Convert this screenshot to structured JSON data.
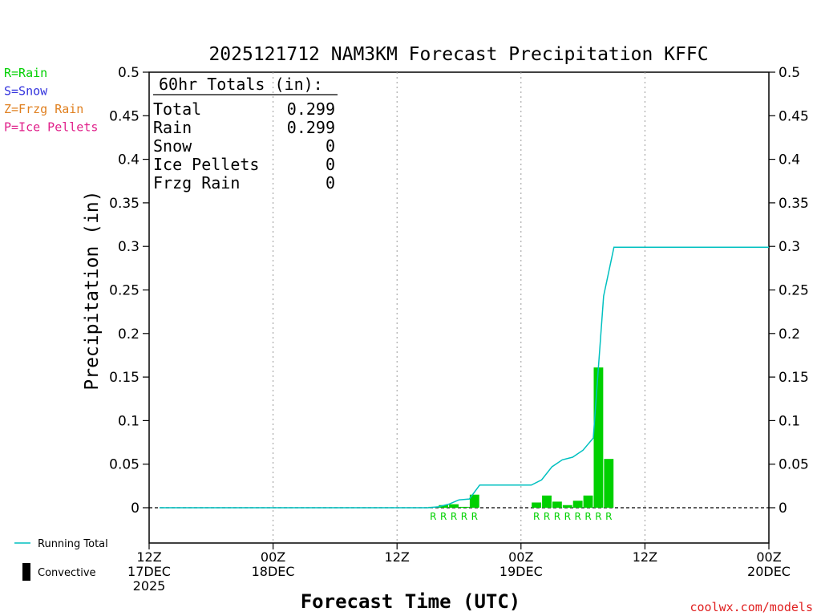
{
  "chart_data": {
    "type": "bar",
    "title": "2025121712 NAM3KM Forecast Precipitation KFFC",
    "xlabel": "Forecast Time (UTC)",
    "ylabel": "Precipitation (in)",
    "ylim": [
      -0.04,
      0.5
    ],
    "yticks": [
      "0",
      "0.05",
      "0.1",
      "0.15",
      "0.2",
      "0.25",
      "0.3",
      "0.35",
      "0.4",
      "0.45",
      "0.5"
    ],
    "xlim_hours": [
      0,
      60
    ],
    "grid": "vertical dotted",
    "xticks": [
      {
        "hour": 0,
        "line1": "12Z",
        "line2": "17DEC",
        "line3": "2025"
      },
      {
        "hour": 12,
        "line1": "00Z",
        "line2": "18DEC",
        "line3": ""
      },
      {
        "hour": 24,
        "line1": "12Z",
        "line2": "",
        "line3": ""
      },
      {
        "hour": 36,
        "line1": "00Z",
        "line2": "19DEC",
        "line3": ""
      },
      {
        "hour": 48,
        "line1": "12Z",
        "line2": "",
        "line3": ""
      },
      {
        "hour": 60,
        "line1": "00Z",
        "line2": "20DEC",
        "line3": ""
      }
    ],
    "series": [
      {
        "name": "Convective",
        "kind": "bar",
        "color": "#00d000",
        "hours": [
          28,
          29,
          30,
          31,
          32,
          38,
          39,
          40,
          41,
          42,
          43,
          44,
          45
        ],
        "values": [
          0.001,
          0.003,
          0.004,
          0.001,
          0.015,
          0.006,
          0.014,
          0.007,
          0.003,
          0.008,
          0.014,
          0.161,
          0.056
        ],
        "ptype": [
          "R",
          "R",
          "R",
          "R",
          "R",
          "R",
          "R",
          "R",
          "R",
          "R",
          "R",
          "R",
          "R"
        ]
      },
      {
        "name": "Running Total",
        "kind": "line",
        "color": "#00c0c0",
        "hours": [
          1,
          27,
          28,
          29,
          30,
          31,
          32,
          36,
          37,
          38,
          39,
          40,
          41,
          42,
          43,
          44,
          45,
          60
        ],
        "values": [
          0,
          0,
          0.001,
          0.004,
          0.009,
          0.01,
          0.026,
          0.026,
          0.026,
          0.032,
          0.047,
          0.055,
          0.058,
          0.066,
          0.08,
          0.243,
          0.299,
          0.299
        ]
      }
    ],
    "legend_ptype": [
      {
        "label": "R=Rain",
        "color": "#00d000"
      },
      {
        "label": "S=Snow",
        "color": "#3333dd"
      },
      {
        "label": "Z=Frzg Rain",
        "color": "#e08020"
      },
      {
        "label": "P=Ice Pellets",
        "color": "#e0208a"
      }
    ],
    "legend_bottom": [
      {
        "label": "Running Total",
        "color": "#00c0c0",
        "kind": "line"
      },
      {
        "label": "Convective",
        "color": "#000000",
        "kind": "bar"
      }
    ],
    "totals_box": {
      "heading": "60hr Totals (in):",
      "rows": [
        {
          "label": "Total",
          "value": "0.299"
        },
        {
          "label": "Rain",
          "value": "0.299"
        },
        {
          "label": "Snow",
          "value": "0"
        },
        {
          "label": "Ice Pellets",
          "value": "0"
        },
        {
          "label": "Frzg Rain",
          "value": "0"
        }
      ]
    },
    "credit": "coolwx.com/models"
  }
}
